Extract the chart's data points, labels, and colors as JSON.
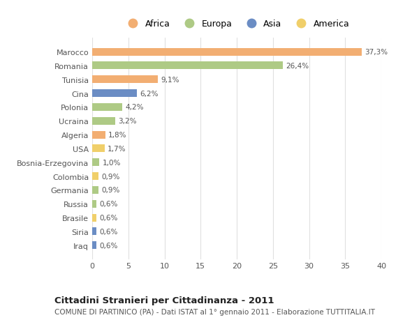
{
  "countries": [
    "Marocco",
    "Romania",
    "Tunisia",
    "Cina",
    "Polonia",
    "Ucraina",
    "Algeria",
    "USA",
    "Bosnia-Erzegovina",
    "Colombia",
    "Germania",
    "Russia",
    "Brasile",
    "Siria",
    "Iraq"
  ],
  "values": [
    37.3,
    26.4,
    9.1,
    6.2,
    4.2,
    3.2,
    1.8,
    1.7,
    1.0,
    0.9,
    0.9,
    0.6,
    0.6,
    0.6,
    0.6
  ],
  "labels": [
    "37,3%",
    "26,4%",
    "9,1%",
    "6,2%",
    "4,2%",
    "3,2%",
    "1,8%",
    "1,7%",
    "1,0%",
    "0,9%",
    "0,9%",
    "0,6%",
    "0,6%",
    "0,6%",
    "0,6%"
  ],
  "continents": [
    "Africa",
    "Europa",
    "Africa",
    "Asia",
    "Europa",
    "Europa",
    "Africa",
    "America",
    "Europa",
    "America",
    "Europa",
    "Europa",
    "America",
    "Asia",
    "Asia"
  ],
  "colors": {
    "Africa": "#F2AE72",
    "Europa": "#AECA85",
    "Asia": "#6B8DC4",
    "America": "#F0CF6A"
  },
  "legend_order": [
    "Africa",
    "Europa",
    "Asia",
    "America"
  ],
  "title": "Cittadini Stranieri per Cittadinanza - 2011",
  "subtitle": "COMUNE DI PARTINICO (PA) - Dati ISTAT al 1° gennaio 2011 - Elaborazione TUTTITALIA.IT",
  "xlim": [
    0,
    40
  ],
  "xticks": [
    0,
    5,
    10,
    15,
    20,
    25,
    30,
    35,
    40
  ],
  "background_color": "#ffffff",
  "grid_color": "#e0e0e0",
  "bar_height": 0.55
}
